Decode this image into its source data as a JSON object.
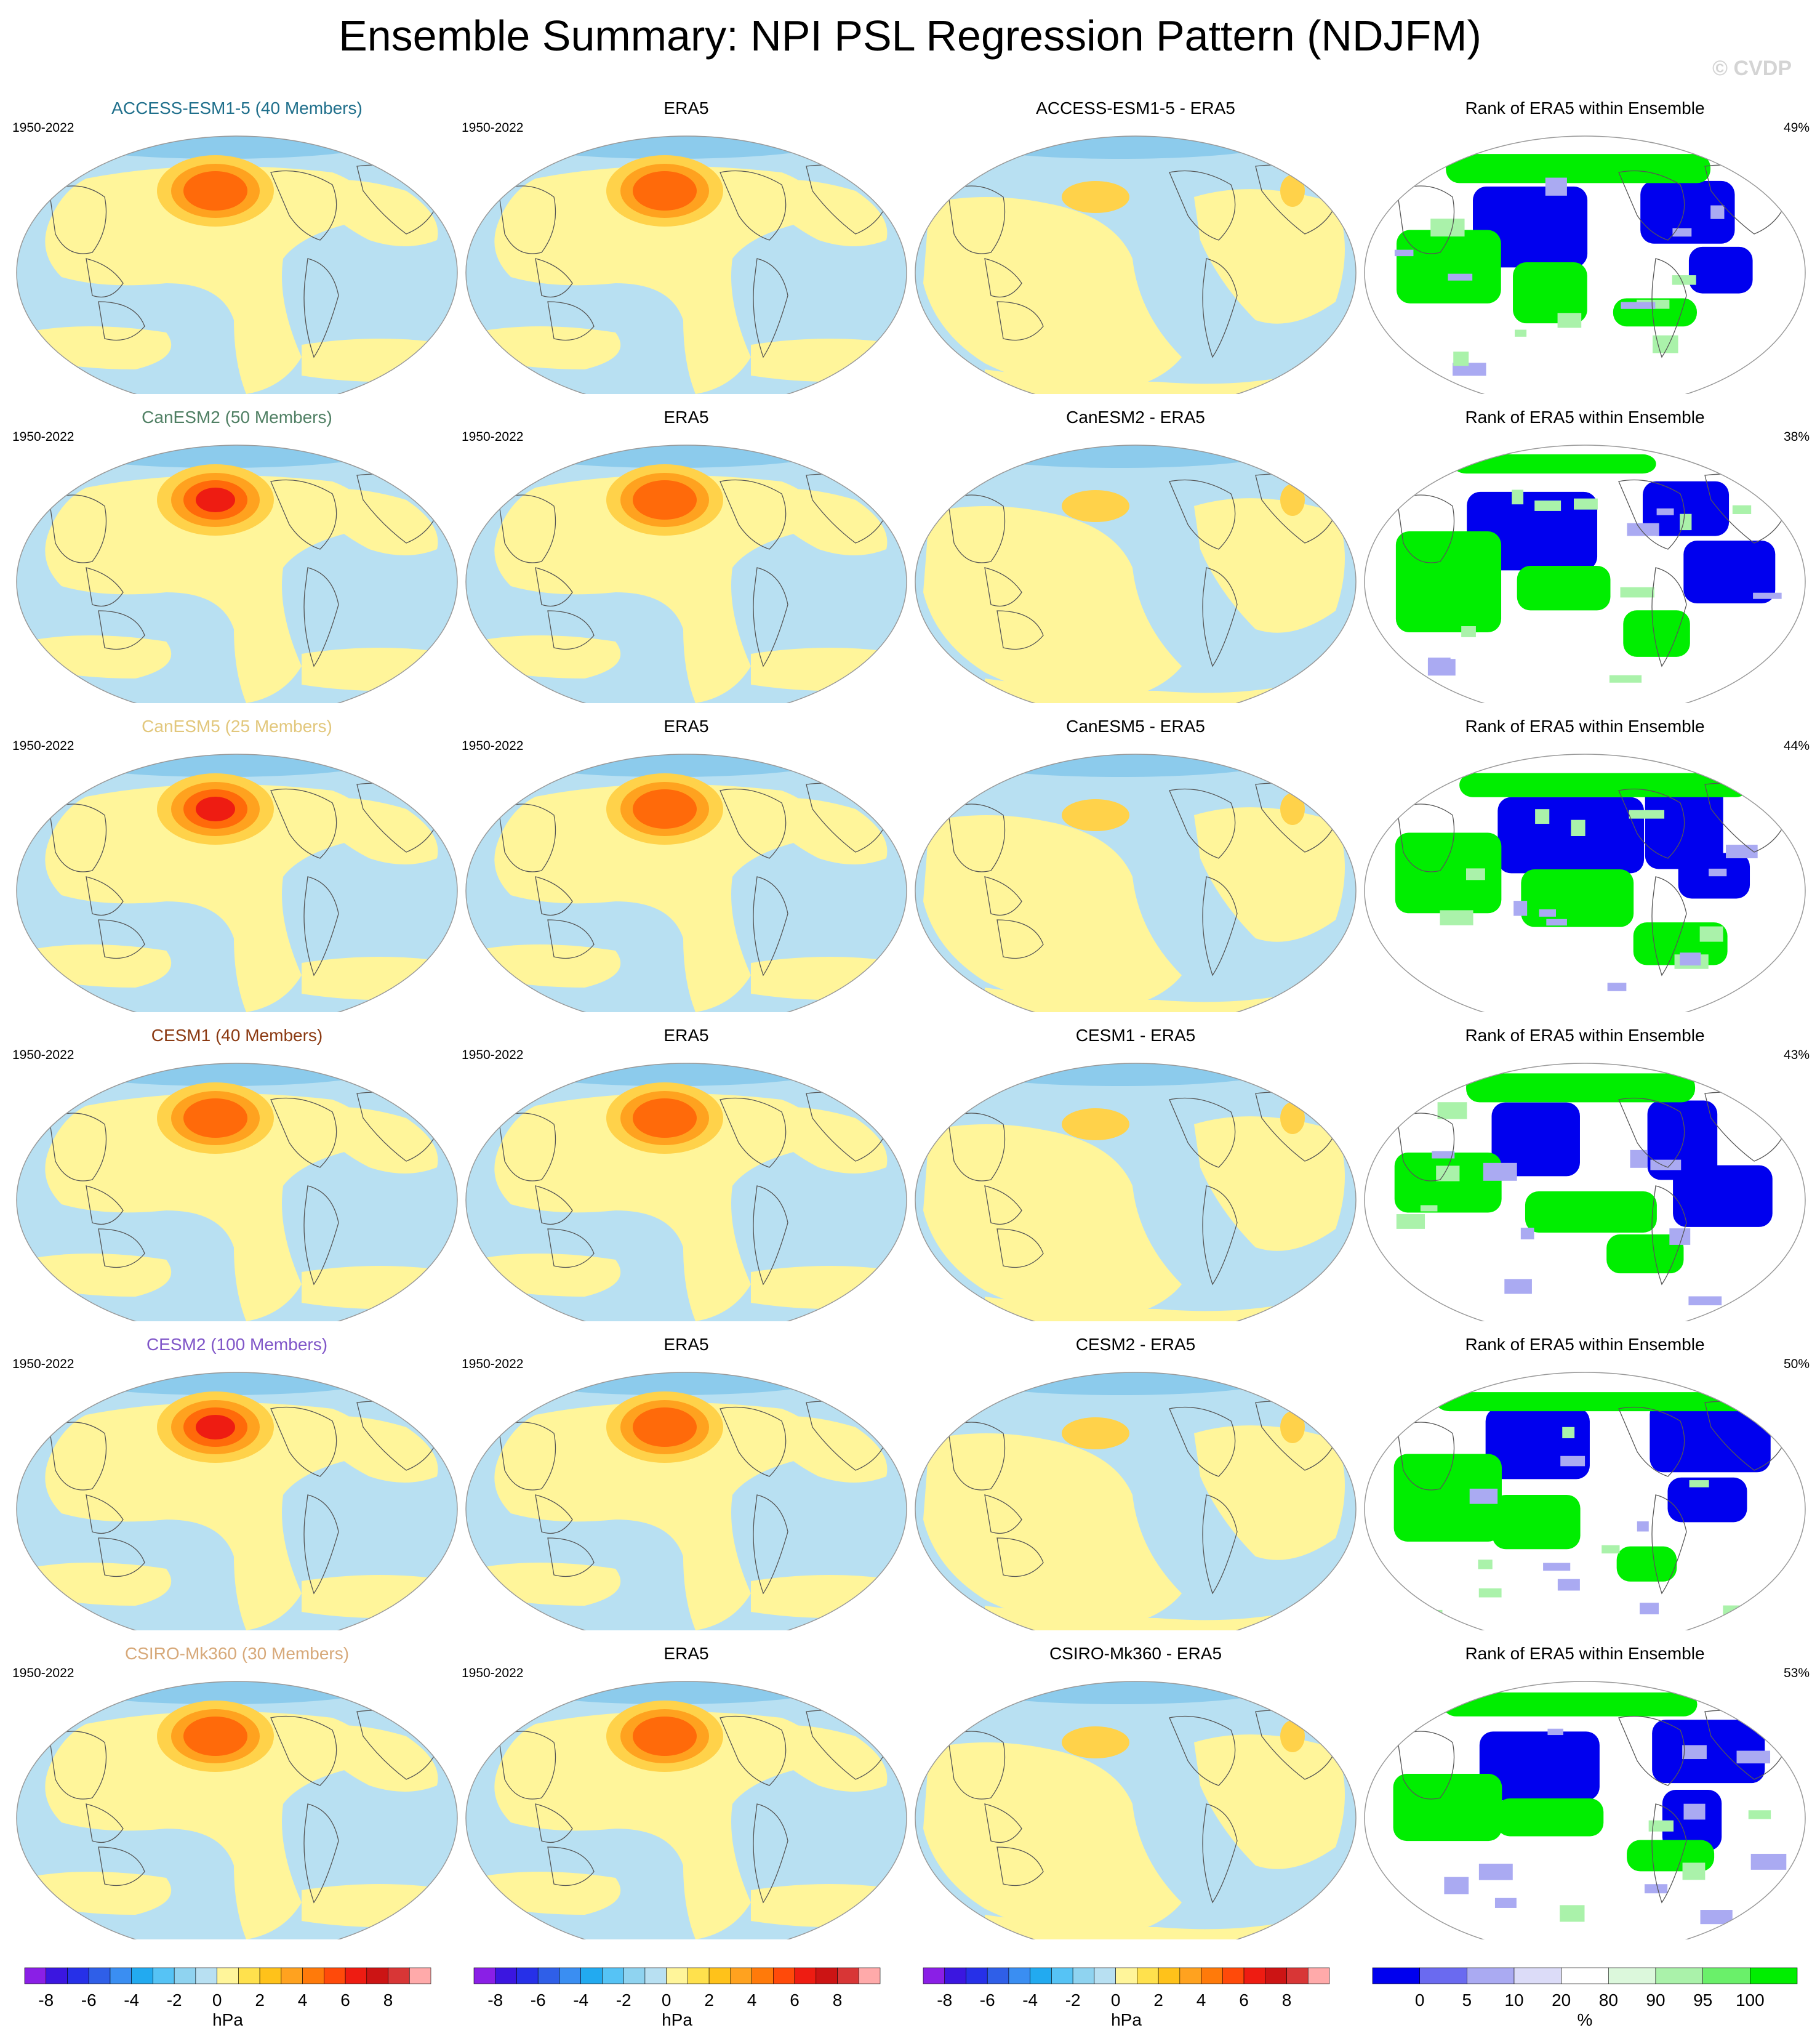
{
  "title": "Ensemble Summary: NPI PSL Regression Pattern (NDJFM)",
  "watermark": "© CVDP",
  "period": "1950-2022",
  "rank_title": "Rank of ERA5 within Ensemble",
  "obs_name": "ERA5",
  "colors": {
    "neg_light": "#b8e0f2",
    "neg_mid": "#8ccbec",
    "neg_dark": "#5ab4f0",
    "pos_light": "#fff59a",
    "pos_mid": "#ffd24a",
    "pos_orange": "#ffa21f",
    "pos_deep": "#ff6a0a",
    "pos_red": "#ee1c12",
    "rank_low": "#0000ee",
    "rank_high": "#00ee00"
  },
  "rows": [
    {
      "model": "ACCESS-ESM1-5 (40 Members)",
      "model_color": "#1f6f8b",
      "diff_title": "ACCESS-ESM1-5 - ERA5",
      "rank_pct": "49%",
      "peak": 3
    },
    {
      "model": "CanESM2 (50 Members)",
      "model_color": "#4f7f63",
      "diff_title": "CanESM2 - ERA5",
      "rank_pct": "38%",
      "peak": 4
    },
    {
      "model": "CanESM5 (25 Members)",
      "model_color": "#e2c77c",
      "diff_title": "CanESM5 - ERA5",
      "rank_pct": "44%",
      "peak": 4
    },
    {
      "model": "CESM1 (40 Members)",
      "model_color": "#8b3a12",
      "diff_title": "CESM1 - ERA5",
      "rank_pct": "43%",
      "peak": 3
    },
    {
      "model": "CESM2 (100 Members)",
      "model_color": "#8056c8",
      "diff_title": "CESM2 - ERA5",
      "rank_pct": "50%",
      "peak": 4
    },
    {
      "model": "CSIRO-Mk360 (30 Members)",
      "model_color": "#d7a97a",
      "diff_title": "CSIRO-Mk360 - ERA5",
      "rank_pct": "53%",
      "peak": 3
    }
  ],
  "colorbar": {
    "colors": [
      "#8a1fe6",
      "#3b16e0",
      "#2630e8",
      "#2f5fe8",
      "#3a8ef2",
      "#22aaf0",
      "#56c3f5",
      "#8fd3f0",
      "#b8e0f2",
      "#fff59a",
      "#ffe14d",
      "#ffc21a",
      "#ffa21f",
      "#ff7a0a",
      "#ff4a0a",
      "#ee1c12",
      "#cc1414",
      "#d83636",
      "#ffaaaa"
    ],
    "ticks": [
      "-8",
      "-6",
      "-4",
      "-2",
      "0",
      "2",
      "4",
      "6",
      "8"
    ],
    "label": "hPa"
  },
  "rank_colorbar": {
    "colors": [
      "#0000ee",
      "#6a6af0",
      "#aaaaf2",
      "#dcdcf8",
      "#ffffff",
      "#dcf8dc",
      "#aaf2aa",
      "#6af06a",
      "#00ee00"
    ],
    "ticks": [
      "0",
      "5",
      "10",
      "20",
      "80",
      "90",
      "95",
      "100"
    ],
    "label": "%"
  },
  "chart_data": {
    "type": "map",
    "projection": "Robinson (Pacific-centred)",
    "variable": "PSL regression on NPI",
    "units": "hPa",
    "contour_levels": [
      -8,
      -7,
      -6,
      -5,
      -4,
      -3,
      -2,
      -1,
      0,
      1,
      2,
      3,
      4,
      5,
      6,
      7,
      8
    ],
    "rank_levels": [
      0,
      5,
      10,
      20,
      80,
      90,
      95,
      100
    ]
  }
}
